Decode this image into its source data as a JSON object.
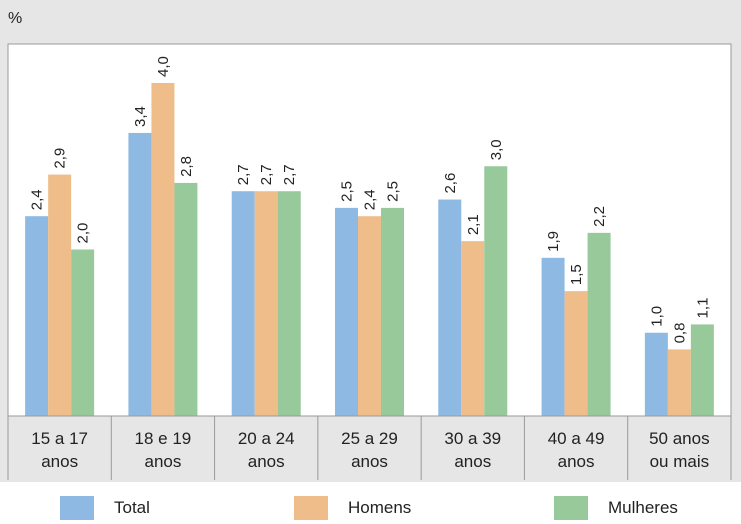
{
  "chart_data": {
    "type": "bar",
    "unit": "%",
    "categories": [
      [
        "15 a 17",
        "anos"
      ],
      [
        "18 e 19",
        "anos"
      ],
      [
        "20 a 24",
        "anos"
      ],
      [
        "25 a 29",
        "anos"
      ],
      [
        "30 a 39",
        "anos"
      ],
      [
        "40 a 49",
        "anos"
      ],
      [
        "50 anos",
        "ou mais"
      ]
    ],
    "series": [
      {
        "name": "Total",
        "color": "#8db9e3",
        "values": [
          2.4,
          3.4,
          2.7,
          2.5,
          2.6,
          1.9,
          1.0
        ],
        "labels": [
          "2,4",
          "3,4",
          "2,7",
          "2,5",
          "2,6",
          "1,9",
          "1,0"
        ]
      },
      {
        "name": "Homens",
        "color": "#eebd8a",
        "values": [
          2.9,
          4.0,
          2.7,
          2.4,
          2.1,
          1.5,
          0.8
        ],
        "labels": [
          "2,9",
          "4,0",
          "2,7",
          "2,4",
          "2,1",
          "1,5",
          "0,8"
        ]
      },
      {
        "name": "Mulheres",
        "color": "#97c99a",
        "values": [
          2.0,
          2.8,
          2.7,
          2.5,
          3.0,
          2.2,
          1.1
        ],
        "labels": [
          "2,0",
          "2,8",
          "2,7",
          "2,5",
          "3,0",
          "2,2",
          "1,1"
        ]
      }
    ],
    "ylim": [
      0,
      4.0
    ],
    "grid": false,
    "legend_position": "bottom"
  }
}
